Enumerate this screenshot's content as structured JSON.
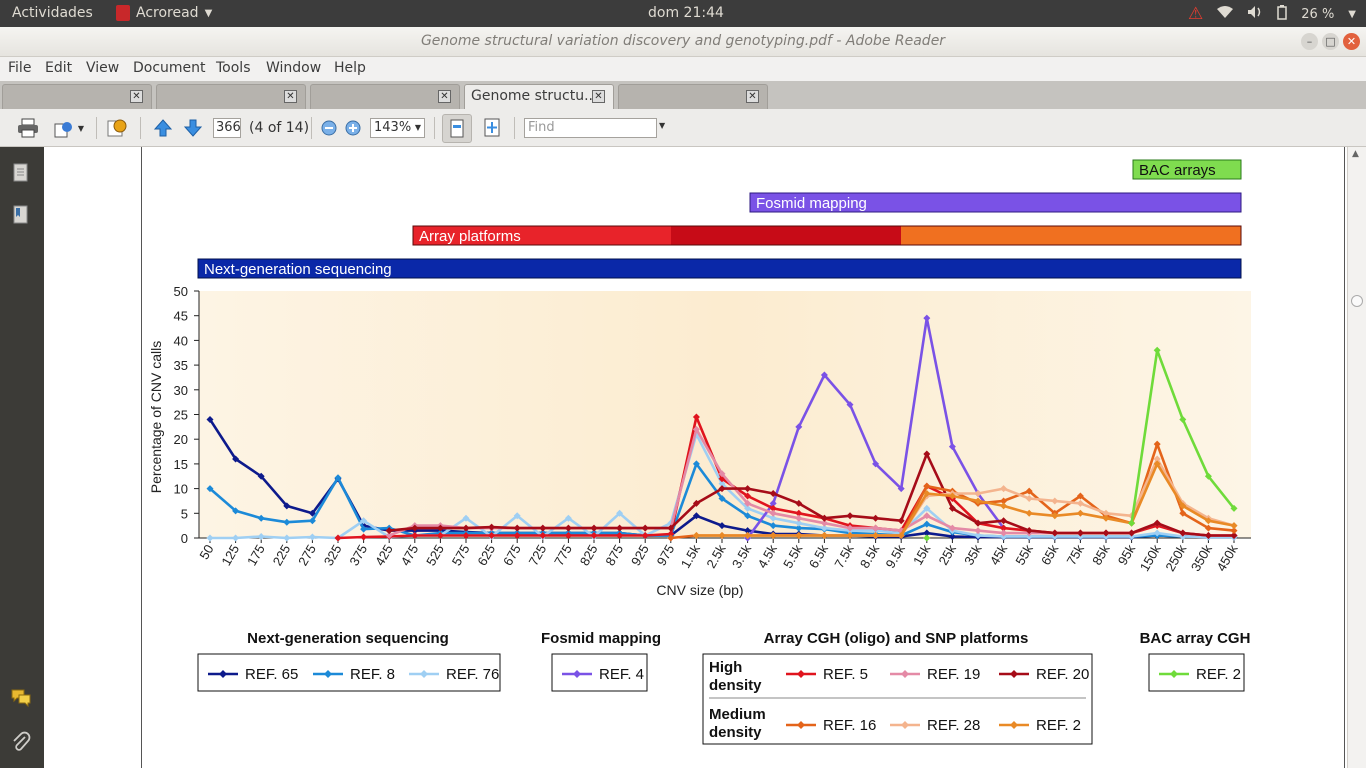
{
  "system": {
    "activities": "Actividades",
    "app_name": "Acroread",
    "clock": "dom 21:44",
    "battery": "26 %"
  },
  "window": {
    "title": "Genome structural variation discovery and genotyping.pdf - Adobe Reader"
  },
  "menu": [
    "File",
    "Edit",
    "View",
    "Document",
    "Tools",
    "Window",
    "Help"
  ],
  "tabs": [
    {
      "label": "",
      "active": false
    },
    {
      "label": "",
      "active": false
    },
    {
      "label": "",
      "active": false
    },
    {
      "label": "Genome structu...",
      "active": true
    },
    {
      "label": "",
      "active": false
    }
  ],
  "toolbar": {
    "page_value": "366",
    "page_count": "(4 of 14)",
    "zoom": "143%",
    "find_placeholder": "Find"
  },
  "colors": {
    "ngs_bar": "#0a28a8",
    "array_bar_light": "#e8232a",
    "array_bar_mid": "#c70b17",
    "array_bar_orange": "#f07020",
    "fosmid_bar": "#7a52e6",
    "bac_bar": "#7fdc4f",
    "plot_bg": "#fdf0d9"
  },
  "method_bars": {
    "bac": "BAC arrays",
    "fosmid": "Fosmid mapping",
    "array": "Array platforms",
    "ngs": "Next-generation sequencing"
  },
  "chart_data": {
    "type": "line",
    "xlabel": "CNV size (bp)",
    "ylabel": "Percentage of CNV calls",
    "ylim": [
      0,
      50
    ],
    "yticks": [
      0,
      5,
      10,
      15,
      20,
      25,
      30,
      35,
      40,
      45,
      50
    ],
    "categories": [
      "50",
      "125",
      "175",
      "225",
      "275",
      "325",
      "375",
      "425",
      "475",
      "525",
      "575",
      "625",
      "675",
      "725",
      "775",
      "825",
      "875",
      "925",
      "975",
      "1.5k",
      "2.5k",
      "3.5k",
      "4.5k",
      "5.5k",
      "6.5k",
      "7.5k",
      "8.5k",
      "9.5k",
      "15k",
      "25k",
      "35k",
      "45k",
      "55k",
      "65k",
      "75k",
      "85k",
      "95k",
      "150k",
      "250k",
      "350k",
      "450k"
    ],
    "series": [
      {
        "name": "REF. 65",
        "group": "ngs",
        "color": "#0d1a8c",
        "values": [
          24,
          16,
          12.5,
          6.5,
          5,
          12,
          2.5,
          1.5,
          1.5,
          1.5,
          1.2,
          1,
          1,
          1,
          1,
          1,
          1,
          0.5,
          0.5,
          4.5,
          2.5,
          1.5,
          0.8,
          0.8,
          0.5,
          0.5,
          0.3,
          0.3,
          1,
          0.3,
          0.2,
          0.2,
          0.2,
          0.2,
          0.2,
          0.2,
          0.2,
          0.5,
          0.3,
          0.2,
          0.2
        ]
      },
      {
        "name": "REF. 8",
        "group": "ngs",
        "color": "#1c8ad8",
        "values": [
          10,
          5.5,
          4,
          3.2,
          3.5,
          12.2,
          1.8,
          2,
          0.5,
          1,
          1,
          1,
          1,
          1,
          1,
          1,
          1,
          0.5,
          0.5,
          15,
          8,
          4.5,
          2.5,
          2,
          1.8,
          1,
          0.8,
          0.5,
          2.8,
          1.2,
          0.5,
          0.3,
          0.3,
          0.3,
          0.3,
          0.3,
          0.3,
          0.5,
          0.3,
          0.2,
          0.2
        ]
      },
      {
        "name": "REF. 76",
        "group": "ngs",
        "color": "#9fcff3",
        "values": [
          0,
          0,
          0.3,
          0,
          0.2,
          0,
          3.5,
          0.2,
          0.5,
          0.5,
          4,
          0.3,
          4.5,
          0.3,
          4,
          0.3,
          5,
          0.5,
          3,
          21,
          11,
          6,
          4,
          3,
          2,
          1.5,
          1.5,
          1,
          6,
          1.5,
          0.5,
          0.3,
          0.3,
          0.3,
          0.3,
          0.3,
          0.3,
          1,
          0.3,
          0.2,
          0.2
        ]
      },
      {
        "name": "REF. 4",
        "group": "fosmid",
        "color": "#7a52e6",
        "values": [
          null,
          null,
          null,
          null,
          null,
          null,
          null,
          null,
          null,
          null,
          null,
          null,
          null,
          null,
          null,
          null,
          null,
          null,
          null,
          null,
          null,
          0,
          7,
          22.5,
          33,
          27,
          15,
          10,
          44.5,
          18.5,
          9,
          2,
          null,
          null,
          null,
          null,
          null,
          null,
          null,
          null,
          null
        ]
      },
      {
        "name": "REF. 5",
        "group": "array_high",
        "color": "#e0141e",
        "values": [
          null,
          null,
          null,
          null,
          null,
          0,
          0.2,
          0.3,
          0.5,
          0.5,
          0.5,
          0.5,
          0.5,
          0.5,
          0.5,
          0.5,
          0.5,
          0.5,
          0.8,
          24.5,
          12,
          8.5,
          6,
          5,
          4,
          2.5,
          2,
          1.5,
          10.5,
          8,
          3,
          2,
          1.5,
          1,
          1,
          1,
          1,
          2.5,
          1,
          0.5,
          0.5
        ]
      },
      {
        "name": "REF. 19",
        "group": "array_high",
        "color": "#e48aa6",
        "values": [
          null,
          null,
          null,
          null,
          null,
          null,
          null,
          0.5,
          2.5,
          2.5,
          2,
          2,
          2,
          2,
          2,
          2,
          2,
          2,
          2,
          22,
          13,
          7,
          5,
          4,
          3,
          2,
          2,
          1.5,
          4.5,
          2,
          1.5,
          1,
          1,
          1,
          1,
          1,
          1,
          3,
          1,
          0.5,
          0.5
        ]
      },
      {
        "name": "REF. 20",
        "group": "array_high",
        "color": "#a60c18",
        "values": [
          null,
          null,
          null,
          null,
          null,
          null,
          null,
          1.5,
          2,
          2,
          2,
          2.2,
          2,
          2,
          2,
          2,
          2,
          2,
          2,
          7,
          10,
          10,
          9,
          7,
          4,
          4.5,
          4,
          3.5,
          17,
          6,
          3,
          3.5,
          1.5,
          1,
          1,
          1,
          1,
          3,
          1,
          0.5,
          0.5
        ]
      },
      {
        "name": "REF. 16",
        "group": "array_medium",
        "color": "#e4641a",
        "values": [
          null,
          null,
          null,
          null,
          null,
          null,
          null,
          null,
          null,
          null,
          null,
          null,
          null,
          null,
          null,
          null,
          null,
          null,
          0,
          0.5,
          0.5,
          0.5,
          0.5,
          0.5,
          0.5,
          0.5,
          0.5,
          0.5,
          10.5,
          9.5,
          7,
          7.5,
          9.5,
          5,
          8.5,
          4.5,
          3,
          19,
          5,
          2,
          1.5
        ]
      },
      {
        "name": "REF. 28",
        "group": "array_medium",
        "color": "#f4b48e",
        "values": [
          null,
          null,
          null,
          null,
          null,
          null,
          null,
          null,
          null,
          null,
          null,
          null,
          null,
          null,
          null,
          null,
          null,
          null,
          null,
          0.5,
          0.5,
          0.5,
          0.5,
          0.5,
          0.5,
          0.5,
          0.5,
          0.5,
          8.5,
          9,
          9,
          10,
          8,
          7.5,
          7,
          5,
          4.5,
          16,
          7,
          4,
          2.5
        ]
      },
      {
        "name": "REF. 2",
        "group": "array_medium",
        "color": "#e98a26",
        "values": [
          null,
          null,
          null,
          null,
          null,
          null,
          null,
          null,
          null,
          null,
          null,
          null,
          null,
          null,
          null,
          null,
          null,
          null,
          null,
          0.5,
          0.5,
          0.5,
          0.5,
          0.5,
          0.5,
          0.5,
          0.5,
          0.5,
          9,
          8.5,
          7.5,
          6.5,
          5,
          4.5,
          5,
          4,
          3,
          15,
          6.5,
          3.5,
          2.5
        ]
      },
      {
        "name": "REF. 2",
        "group": "bac",
        "color": "#6fdb3a",
        "values": [
          null,
          null,
          null,
          null,
          null,
          null,
          null,
          null,
          null,
          null,
          null,
          null,
          null,
          null,
          null,
          null,
          null,
          null,
          null,
          null,
          null,
          null,
          null,
          null,
          null,
          null,
          null,
          null,
          0,
          null,
          null,
          null,
          null,
          null,
          null,
          null,
          3,
          38,
          24,
          12.5,
          6
        ]
      }
    ]
  },
  "legend": {
    "ngs_title": "Next-generation sequencing",
    "fosmid_title": "Fosmid mapping",
    "array_title": "Array CGH (oligo) and SNP platforms",
    "bac_title": "BAC array CGH",
    "high_density_line1": "High",
    "high_density_line2": "density",
    "medium_density_line1": "Medium",
    "medium_density_line2": "density"
  }
}
